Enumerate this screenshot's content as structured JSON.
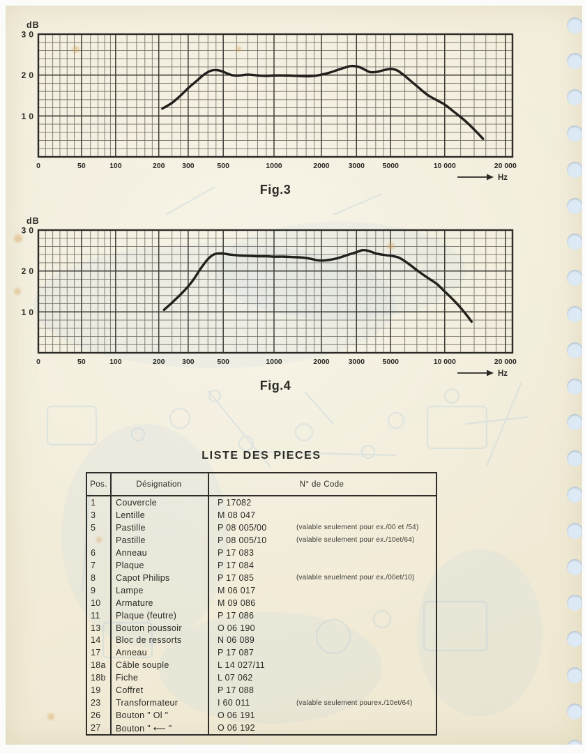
{
  "chart_data": [
    {
      "type": "line",
      "title": "Fig.3",
      "ylabel": "dB",
      "xlabel": "Hz",
      "ylim": [
        0,
        30
      ],
      "grid": "on",
      "legend": "none",
      "y_tick_labels": [
        "30",
        "20",
        "10"
      ],
      "x_tick_labels": [
        "0",
        "50",
        "100",
        "200",
        "300",
        "500",
        "1000",
        "2000",
        "3000",
        "5000",
        "10 000",
        "20 000"
      ],
      "x": [
        210,
        240,
        270,
        300,
        340,
        380,
        420,
        460,
        500,
        560,
        620,
        700,
        800,
        900,
        1000,
        1200,
        1400,
        1600,
        1800,
        2000,
        2200,
        2500,
        2800,
        3100,
        3400,
        3700,
        4100,
        4500,
        5000,
        5400,
        5800,
        6300,
        7000,
        8000,
        9000,
        10000,
        11000,
        12500,
        14000,
        15500
      ],
      "y": [
        11.8,
        13.2,
        15.0,
        16.8,
        18.6,
        20.2,
        21.1,
        21.2,
        20.8,
        20.0,
        19.9,
        20.1,
        19.9,
        19.8,
        19.9,
        19.9,
        19.8,
        19.7,
        19.8,
        20.1,
        20.6,
        21.5,
        22.2,
        22.0,
        21.3,
        20.7,
        20.8,
        21.2,
        21.5,
        21.2,
        20.3,
        19.0,
        17.3,
        15.2,
        13.9,
        12.8,
        11.2,
        9.0,
        6.7,
        4.4
      ]
    },
    {
      "type": "line",
      "title": "Fig.4",
      "ylabel": "dB",
      "xlabel": "Hz",
      "ylim": [
        0,
        30
      ],
      "grid": "on",
      "legend": "none",
      "y_tick_labels": [
        "30",
        "20",
        "10"
      ],
      "x_tick_labels": [
        "0",
        "50",
        "100",
        "200",
        "300",
        "500",
        "1000",
        "2000",
        "3000",
        "5000",
        "10 000",
        "20 000"
      ],
      "x": [
        215,
        245,
        280,
        320,
        360,
        400,
        440,
        490,
        550,
        620,
        700,
        800,
        900,
        1000,
        1150,
        1300,
        1500,
        1700,
        1900,
        2100,
        2400,
        2700,
        3000,
        3300,
        3600,
        4000,
        4400,
        4800,
        5200,
        5600,
        6000,
        6500,
        7000,
        8000,
        9000,
        10000,
        11000,
        12000,
        13000,
        13600
      ],
      "y": [
        10.5,
        12.6,
        14.9,
        17.6,
        20.6,
        22.9,
        24.1,
        24.3,
        24.0,
        23.8,
        23.7,
        23.6,
        23.6,
        23.5,
        23.5,
        23.4,
        23.3,
        23.0,
        22.6,
        22.6,
        23.1,
        23.9,
        24.6,
        25.1,
        24.9,
        24.3,
        24.0,
        23.8,
        23.6,
        23.2,
        22.4,
        21.3,
        20.2,
        18.4,
        16.9,
        15.0,
        13.0,
        11.0,
        8.9,
        7.6
      ]
    }
  ],
  "parts_table": {
    "title": "LISTE DES PIECES",
    "columns": [
      "Pos.",
      "Désignation",
      "N° de Code"
    ],
    "rows": [
      {
        "pos": "1",
        "designation": "Couvercle",
        "code": "P 17082",
        "note": ""
      },
      {
        "pos": "3",
        "designation": "Lentille",
        "code": "M 08 047",
        "note": ""
      },
      {
        "pos": "5",
        "designation": "Pastille",
        "code": "P 08 005/00",
        "note": "(valable seulement pour ex./00 et /54)"
      },
      {
        "pos": "",
        "designation": "Pastille",
        "code": "P 08 005/10",
        "note": "(valable seulement pour ex./10et/64)"
      },
      {
        "pos": "6",
        "designation": "Anneau",
        "code": "P 17 083",
        "note": ""
      },
      {
        "pos": "7",
        "designation": "Plaque",
        "code": "P 17 084",
        "note": ""
      },
      {
        "pos": "8",
        "designation": "Capot Philips",
        "code": "P 17 085",
        "note": "(valable seuelment pour ex./00et/10)"
      },
      {
        "pos": "9",
        "designation": "Lampe",
        "code": "M 06 017",
        "note": ""
      },
      {
        "pos": "10",
        "designation": "Armature",
        "code": "M 09 086",
        "note": ""
      },
      {
        "pos": "11",
        "designation": "Plaque (feutre)",
        "code": "P 17 086",
        "note": ""
      },
      {
        "pos": "13",
        "designation": "Bouton poussoir",
        "code": "O 06 190",
        "note": ""
      },
      {
        "pos": "14",
        "designation": "Bloc de ressorts",
        "code": "N 06 089",
        "note": ""
      },
      {
        "pos": "17",
        "designation": "Anneau",
        "code": "P 17 087",
        "note": ""
      },
      {
        "pos": "18a",
        "designation": "Câble souple",
        "code": "L 14 027/11",
        "note": ""
      },
      {
        "pos": "18b",
        "designation": "Fiche",
        "code": "L 07 062",
        "note": ""
      },
      {
        "pos": "19",
        "designation": "Coffret",
        "code": "P 17 088",
        "note": ""
      },
      {
        "pos": "23",
        "designation": "Transformateur",
        "code": "I 60 011",
        "note": "(valable seulement pourex./10et/64)"
      },
      {
        "pos": "26",
        "designation": "Bouton \" Ol \"",
        "code": "O 06 191",
        "note": ""
      },
      {
        "pos": "27",
        "designation": "Bouton \" ⟵ \"",
        "code": "O 06 192",
        "note": ""
      }
    ]
  },
  "colors": {
    "paper": "#f2edda",
    "ink": "#2b2a26",
    "grid_minor": "#75726a",
    "grid_major": "#3f3d37",
    "curve": "#21201c",
    "punch_hole": "#dde9f4",
    "bleed_through": "#a8c6dd",
    "stain": "#d8a860"
  }
}
